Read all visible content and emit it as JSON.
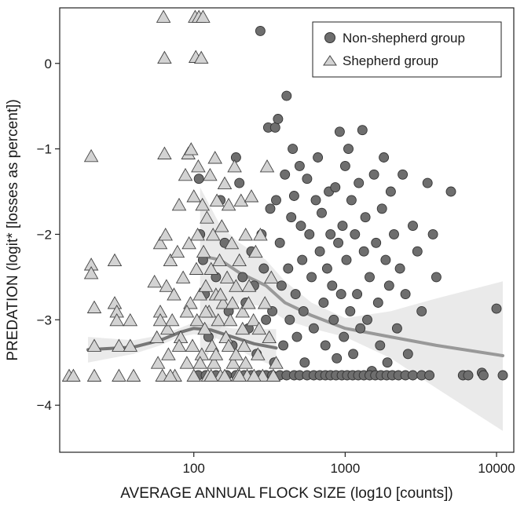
{
  "chart_data": {
    "type": "scatter",
    "xlabel": "AVERAGE ANNUAL FLOCK SIZE (log10 [counts])",
    "ylabel": "PREDATION (logit* [losses as percent])",
    "x_scale": "log10",
    "xlim": [
      13,
      13000
    ],
    "ylim": [
      -4.55,
      0.65
    ],
    "x_ticks": [
      100,
      1000,
      10000
    ],
    "x_tick_labels": [
      "100",
      "1000",
      "10000"
    ],
    "y_ticks": [
      0,
      -1,
      -2,
      -3,
      -4
    ],
    "y_tick_labels": [
      "0",
      "−1",
      "−2",
      "−3",
      "−4"
    ],
    "grid": false,
    "legend": {
      "position": "top-right",
      "entries": [
        "Non-shepherd group",
        "Shepherd group"
      ]
    },
    "series": [
      {
        "name": "Non-shepherd group",
        "marker": "circle",
        "color": "#6e6e6e",
        "points": [
          [
            108,
            -1.35
          ],
          [
            110,
            -2.0
          ],
          [
            115,
            -2.3
          ],
          [
            118,
            -2.7
          ],
          [
            125,
            -3.2
          ],
          [
            140,
            -2.5
          ],
          [
            150,
            -1.6
          ],
          [
            160,
            -2.1
          ],
          [
            170,
            -2.9
          ],
          [
            180,
            -3.3
          ],
          [
            190,
            -1.1
          ],
          [
            200,
            -1.4
          ],
          [
            210,
            -2.5
          ],
          [
            220,
            -2.8
          ],
          [
            230,
            -3.1
          ],
          [
            240,
            -2.2
          ],
          [
            250,
            -2.6
          ],
          [
            260,
            -3.4
          ],
          [
            275,
            0.38
          ],
          [
            280,
            -2.0
          ],
          [
            290,
            -2.4
          ],
          [
            300,
            -3.0
          ],
          [
            310,
            -0.75
          ],
          [
            320,
            -1.7
          ],
          [
            330,
            -2.9
          ],
          [
            340,
            -3.5
          ],
          [
            345,
            -0.75
          ],
          [
            350,
            -1.6
          ],
          [
            360,
            -0.65
          ],
          [
            370,
            -2.1
          ],
          [
            380,
            -2.6
          ],
          [
            390,
            -3.3
          ],
          [
            400,
            -1.3
          ],
          [
            410,
            -0.38
          ],
          [
            420,
            -2.4
          ],
          [
            430,
            -3.0
          ],
          [
            440,
            -1.8
          ],
          [
            450,
            -1.0
          ],
          [
            460,
            -1.55
          ],
          [
            470,
            -2.7
          ],
          [
            480,
            -3.2
          ],
          [
            500,
            -1.2
          ],
          [
            510,
            -1.9
          ],
          [
            520,
            -2.3
          ],
          [
            530,
            -2.9
          ],
          [
            540,
            -3.5
          ],
          [
            560,
            -1.35
          ],
          [
            580,
            -2.0
          ],
          [
            600,
            -2.5
          ],
          [
            620,
            -3.1
          ],
          [
            640,
            -1.6
          ],
          [
            660,
            -1.1
          ],
          [
            680,
            -2.2
          ],
          [
            700,
            -1.75
          ],
          [
            720,
            -2.8
          ],
          [
            740,
            -3.3
          ],
          [
            760,
            -2.4
          ],
          [
            780,
            -1.5
          ],
          [
            800,
            -2.0
          ],
          [
            820,
            -2.6
          ],
          [
            840,
            -3.0
          ],
          [
            860,
            -1.45
          ],
          [
            880,
            -3.45
          ],
          [
            900,
            -2.1
          ],
          [
            920,
            -0.8
          ],
          [
            940,
            -2.7
          ],
          [
            960,
            -1.9
          ],
          [
            980,
            -3.2
          ],
          [
            1000,
            -1.2
          ],
          [
            1020,
            -2.3
          ],
          [
            1050,
            -1.0
          ],
          [
            1080,
            -2.9
          ],
          [
            1100,
            -1.6
          ],
          [
            1130,
            -3.4
          ],
          [
            1160,
            -2.0
          ],
          [
            1200,
            -2.7
          ],
          [
            1230,
            -1.4
          ],
          [
            1260,
            -3.1
          ],
          [
            1300,
            -0.78
          ],
          [
            1330,
            -2.2
          ],
          [
            1360,
            -1.8
          ],
          [
            1400,
            -3.0
          ],
          [
            1450,
            -2.5
          ],
          [
            1500,
            -3.6
          ],
          [
            1550,
            -1.3
          ],
          [
            1600,
            -2.1
          ],
          [
            1650,
            -2.8
          ],
          [
            1700,
            -3.3
          ],
          [
            1750,
            -1.7
          ],
          [
            1800,
            -1.1
          ],
          [
            1850,
            -2.3
          ],
          [
            1900,
            -3.5
          ],
          [
            1950,
            -2.6
          ],
          [
            2000,
            -1.5
          ],
          [
            2100,
            -2.0
          ],
          [
            2200,
            -3.1
          ],
          [
            2300,
            -2.4
          ],
          [
            2400,
            -1.3
          ],
          [
            2500,
            -2.7
          ],
          [
            2600,
            -3.4
          ],
          [
            2800,
            -1.9
          ],
          [
            3000,
            -2.2
          ],
          [
            3200,
            -2.9
          ],
          [
            3500,
            -1.4
          ],
          [
            3800,
            -2.0
          ],
          [
            4000,
            -2.5
          ],
          [
            5000,
            -1.5
          ],
          [
            10000,
            -2.87
          ],
          [
            107,
            -3.65
          ],
          [
            120,
            -3.65
          ],
          [
            140,
            -3.65
          ],
          [
            165,
            -3.65
          ],
          [
            190,
            -3.65
          ],
          [
            215,
            -3.65
          ],
          [
            240,
            -3.65
          ],
          [
            270,
            -3.65
          ],
          [
            300,
            -3.65
          ],
          [
            330,
            -3.65
          ],
          [
            370,
            -3.65
          ],
          [
            410,
            -3.65
          ],
          [
            460,
            -3.65
          ],
          [
            500,
            -3.65
          ],
          [
            560,
            -3.65
          ],
          [
            620,
            -3.65
          ],
          [
            680,
            -3.65
          ],
          [
            740,
            -3.65
          ],
          [
            800,
            -3.65
          ],
          [
            870,
            -3.65
          ],
          [
            950,
            -3.65
          ],
          [
            1030,
            -3.65
          ],
          [
            1120,
            -3.65
          ],
          [
            1220,
            -3.65
          ],
          [
            1330,
            -3.65
          ],
          [
            1450,
            -3.65
          ],
          [
            1580,
            -3.65
          ],
          [
            1720,
            -3.65
          ],
          [
            1880,
            -3.65
          ],
          [
            2050,
            -3.65
          ],
          [
            2250,
            -3.65
          ],
          [
            2500,
            -3.65
          ],
          [
            2800,
            -3.65
          ],
          [
            3200,
            -3.65
          ],
          [
            3600,
            -3.65
          ],
          [
            6000,
            -3.65
          ],
          [
            6500,
            -3.65
          ],
          [
            8000,
            -3.62
          ],
          [
            8200,
            -3.65
          ],
          [
            11000,
            -3.65
          ]
        ]
      },
      {
        "name": "Shepherd group",
        "marker": "triangle",
        "color": "#d3d3d3",
        "points": [
          [
            15,
            -3.65
          ],
          [
            16,
            -3.65
          ],
          [
            21,
            -1.08
          ],
          [
            21,
            -2.35
          ],
          [
            21,
            -2.45
          ],
          [
            22,
            -2.85
          ],
          [
            22,
            -3.3
          ],
          [
            22,
            -3.65
          ],
          [
            30,
            -2.3
          ],
          [
            30,
            -2.8
          ],
          [
            31,
            -2.9
          ],
          [
            31,
            -3.0
          ],
          [
            32,
            -3.3
          ],
          [
            32,
            -3.65
          ],
          [
            38,
            -3.0
          ],
          [
            38,
            -3.3
          ],
          [
            40,
            -3.65
          ],
          [
            55,
            -2.55
          ],
          [
            57,
            -3.2
          ],
          [
            58,
            -3.5
          ],
          [
            60,
            -2.1
          ],
          [
            60,
            -2.9
          ],
          [
            62,
            -3.65
          ],
          [
            63,
            0.55
          ],
          [
            64,
            0.07
          ],
          [
            64,
            -1.05
          ],
          [
            65,
            -2.0
          ],
          [
            66,
            -2.6
          ],
          [
            67,
            -3.1
          ],
          [
            68,
            -3.4
          ],
          [
            70,
            -2.3
          ],
          [
            72,
            -3.0
          ],
          [
            74,
            -2.7
          ],
          [
            75,
            -3.65
          ],
          [
            78,
            -2.2
          ],
          [
            80,
            -1.65
          ],
          [
            82,
            -3.2
          ],
          [
            85,
            -2.5
          ],
          [
            88,
            -1.3
          ],
          [
            90,
            -3.5
          ],
          [
            92,
            -1.05
          ],
          [
            93,
            -2.1
          ],
          [
            95,
            -2.8
          ],
          [
            96,
            -1.0
          ],
          [
            98,
            -3.3
          ],
          [
            100,
            -1.55
          ],
          [
            102,
            0.55
          ],
          [
            103,
            0.08
          ],
          [
            104,
            -2.4
          ],
          [
            105,
            -3.0
          ],
          [
            106,
            -2.0
          ],
          [
            107,
            -1.2
          ],
          [
            108,
            0.55
          ],
          [
            110,
            -2.7
          ],
          [
            112,
            0.07
          ],
          [
            113,
            -3.4
          ],
          [
            114,
            -1.65
          ],
          [
            115,
            0.55
          ],
          [
            116,
            -2.2
          ],
          [
            118,
            -3.1
          ],
          [
            120,
            -2.6
          ],
          [
            122,
            -1.8
          ],
          [
            124,
            -3.65
          ],
          [
            126,
            -2.9
          ],
          [
            128,
            -1.3
          ],
          [
            130,
            -2.4
          ],
          [
            132,
            -3.3
          ],
          [
            134,
            -2.0
          ],
          [
            136,
            -3.5
          ],
          [
            138,
            -1.1
          ],
          [
            140,
            -2.7
          ],
          [
            142,
            -1.6
          ],
          [
            145,
            -3.0
          ],
          [
            148,
            -2.3
          ],
          [
            150,
            -3.65
          ],
          [
            153,
            -1.9
          ],
          [
            156,
            -2.8
          ],
          [
            160,
            -1.4
          ],
          [
            163,
            -3.2
          ],
          [
            166,
            -2.5
          ],
          [
            170,
            -1.65
          ],
          [
            174,
            -3.0
          ],
          [
            178,
            -2.1
          ],
          [
            182,
            -3.5
          ],
          [
            186,
            -1.2
          ],
          [
            190,
            -2.6
          ],
          [
            195,
            -3.65
          ],
          [
            200,
            -2.3
          ],
          [
            205,
            -1.6
          ],
          [
            210,
            -2.9
          ],
          [
            215,
            -3.3
          ],
          [
            220,
            -2.0
          ],
          [
            225,
            -3.65
          ],
          [
            232,
            -2.6
          ],
          [
            240,
            -1.55
          ],
          [
            248,
            -3.0
          ],
          [
            256,
            -2.2
          ],
          [
            265,
            -3.4
          ],
          [
            275,
            -2.0
          ],
          [
            285,
            -3.65
          ],
          [
            295,
            -2.8
          ],
          [
            305,
            -1.2
          ],
          [
            315,
            -3.2
          ],
          [
            325,
            -2.5
          ],
          [
            335,
            -3.65
          ],
          [
            350,
            -3.5
          ],
          [
            60,
            -3.0
          ],
          [
            70,
            -3.65
          ],
          [
            80,
            -3.3
          ],
          [
            90,
            -2.9
          ],
          [
            100,
            -3.65
          ],
          [
            110,
            -3.5
          ],
          [
            120,
            -2.9
          ],
          [
            130,
            -3.65
          ],
          [
            140,
            -3.4
          ],
          [
            150,
            -2.7
          ],
          [
            160,
            -3.65
          ],
          [
            170,
            -3.3
          ],
          [
            180,
            -2.8
          ],
          [
            190,
            -3.4
          ],
          [
            200,
            -3.65
          ],
          [
            210,
            -3.1
          ],
          [
            220,
            -3.5
          ],
          [
            230,
            -2.8
          ],
          [
            250,
            -3.65
          ],
          [
            270,
            -3.1
          ]
        ]
      }
    ],
    "trend_lines": [
      {
        "name": "Shepherd group",
        "color": "#777777",
        "x": [
          20,
          40,
          60,
          80,
          100,
          130,
          180,
          250,
          350
        ],
        "y": [
          -3.35,
          -3.32,
          -3.24,
          -3.15,
          -3.1,
          -3.12,
          -3.2,
          -3.28,
          -3.33
        ],
        "band_low": [
          -3.5,
          -3.4,
          -3.3,
          -3.2,
          -3.17,
          -3.19,
          -3.3,
          -3.45,
          -3.55
        ],
        "band_high": [
          -3.2,
          -3.24,
          -3.18,
          -3.1,
          -3.03,
          -3.05,
          -3.1,
          -3.11,
          -3.11
        ]
      },
      {
        "name": "Non-shepherd group",
        "color": "#999999",
        "x": [
          110,
          150,
          200,
          300,
          400,
          600,
          1000,
          2000,
          4000,
          11000
        ],
        "y": [
          -2.25,
          -2.3,
          -2.45,
          -2.6,
          -2.8,
          -2.95,
          -3.1,
          -3.2,
          -3.3,
          -3.42
        ],
        "band_low": [
          -3.6,
          -3.1,
          -2.8,
          -2.85,
          -3.0,
          -3.1,
          -3.2,
          -3.45,
          -3.8,
          -4.3
        ],
        "band_high": [
          -1.45,
          -1.9,
          -2.1,
          -2.3,
          -2.55,
          -2.8,
          -2.98,
          -2.9,
          -2.75,
          -2.55
        ]
      }
    ]
  }
}
